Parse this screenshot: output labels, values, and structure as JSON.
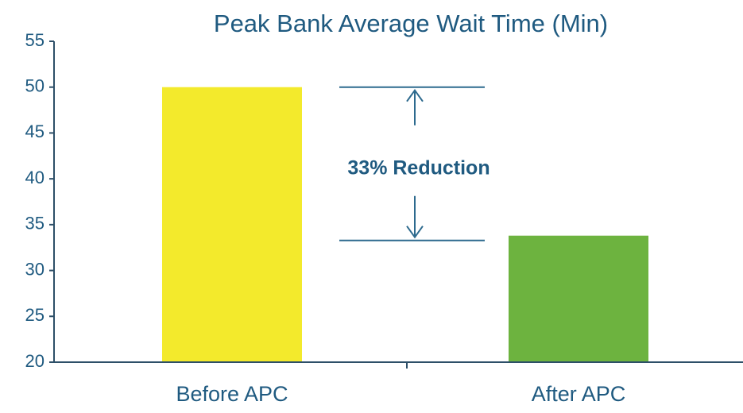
{
  "chart_data": {
    "type": "bar",
    "title": "Peak Bank Average Wait Time (Min)",
    "categories": [
      "Before APC",
      "After APC"
    ],
    "values": [
      50,
      33.8
    ],
    "colors": [
      "#f3ea2c",
      "#6db33f"
    ],
    "ylim": [
      20,
      55
    ],
    "yticks": [
      20,
      25,
      30,
      35,
      40,
      45,
      50,
      55
    ],
    "annotation": "33% Reduction"
  }
}
